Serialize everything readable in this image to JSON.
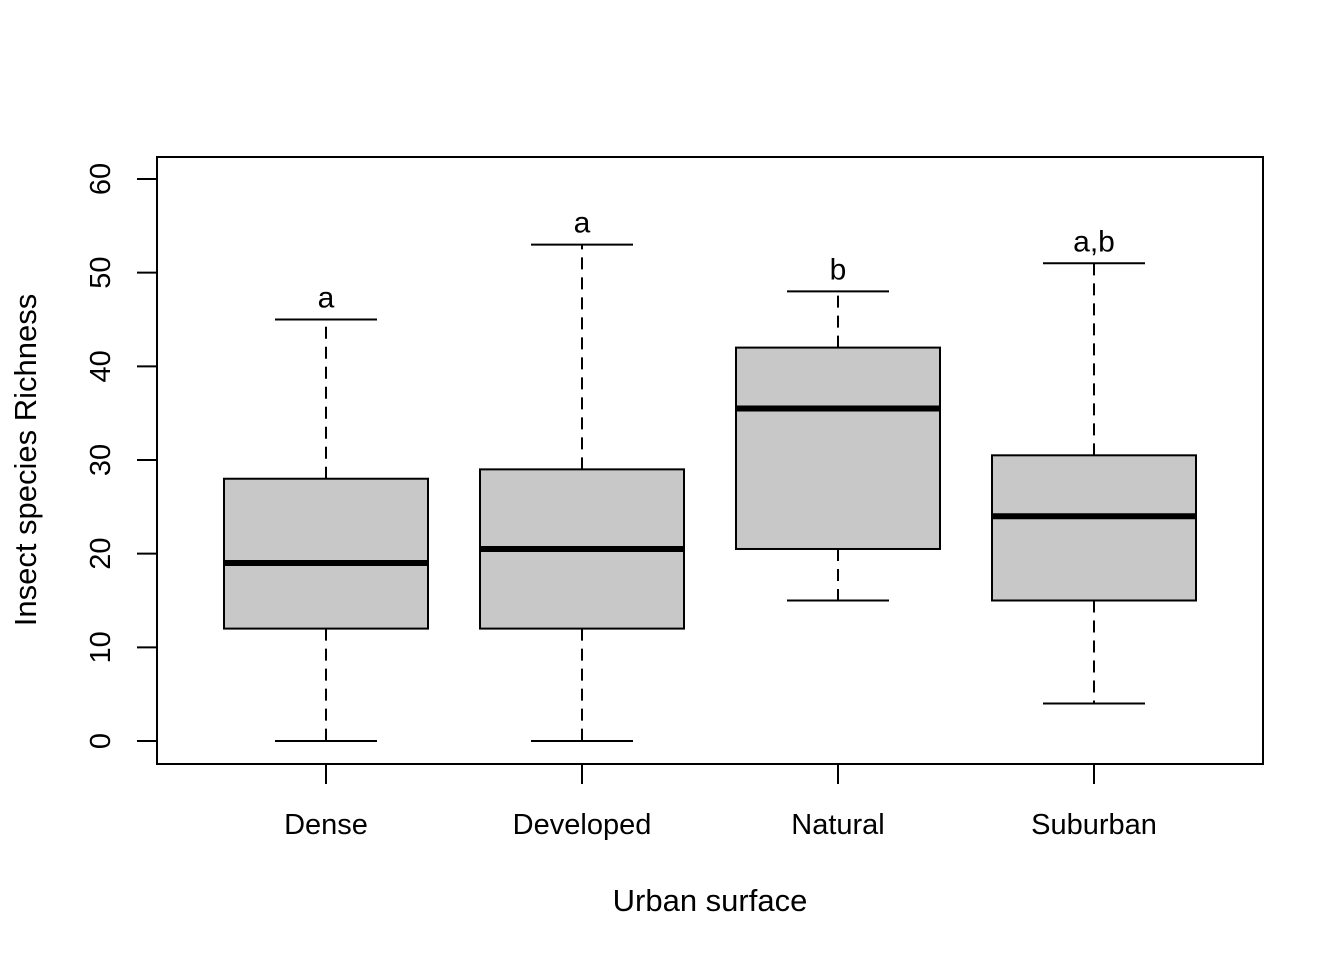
{
  "chart_data": {
    "type": "boxplot",
    "title": "",
    "xlabel": "Urban surface",
    "ylabel": "Insect species Richness",
    "categories": [
      "Dense",
      "Developed",
      "Natural",
      "Suburban"
    ],
    "boxes": [
      {
        "category": "Dense",
        "min": 0,
        "q1": 12,
        "median": 19,
        "q3": 28,
        "max": 45,
        "group_label": "a"
      },
      {
        "category": "Developed",
        "min": 0,
        "q1": 12,
        "median": 20.5,
        "q3": 29,
        "max": 53,
        "group_label": "a"
      },
      {
        "category": "Natural",
        "min": 15,
        "q1": 20.5,
        "median": 35.5,
        "q3": 42,
        "max": 48,
        "group_label": "b"
      },
      {
        "category": "Suburban",
        "min": 4,
        "q1": 15,
        "median": 24,
        "q3": 30.5,
        "max": 51,
        "group_label": "a,b"
      }
    ],
    "y_ticks": [
      0,
      10,
      20,
      30,
      40,
      50,
      60
    ],
    "ylim": [
      -2.4,
      62.4
    ],
    "grid": false,
    "colors": {
      "box_fill": "#c8c8c8",
      "stroke": "#000000",
      "background": "#ffffff"
    }
  }
}
